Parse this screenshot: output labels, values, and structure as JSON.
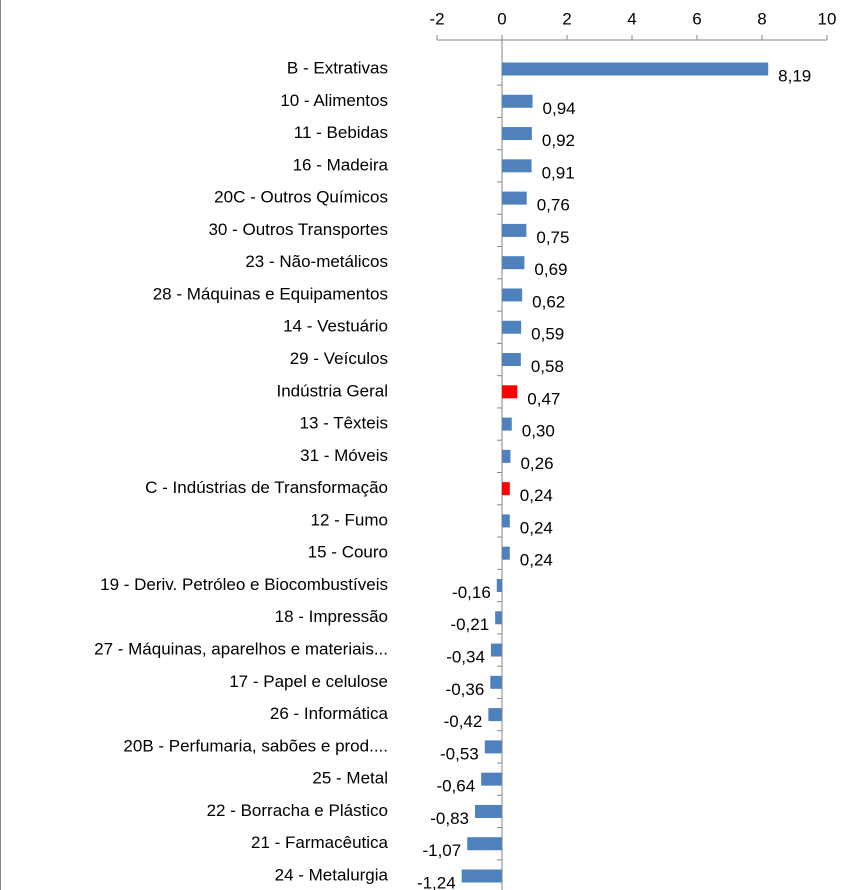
{
  "chart_data": {
    "type": "barh",
    "categories": [
      "B - Extrativas",
      "10 - Alimentos",
      "11 - Bebidas",
      "16 - Madeira",
      "20C - Outros Químicos",
      "30 - Outros Transportes",
      "23 - Não-metálicos",
      "28 - Máquinas e Equipamentos",
      "14 - Vestuário",
      "29 - Veículos",
      "Indústria Geral",
      "13 - Têxteis",
      "31 - Móveis",
      "C - Indústrias de Transformação",
      "12 - Fumo",
      "15 - Couro",
      "19 - Deriv. Petróleo e Biocombustíveis",
      "18 - Impressão",
      "27 - Máquinas, aparelhos e materiais...",
      "17 - Papel e celulose",
      "26 - Informática",
      "20B - Perfumaria, sabões e prod....",
      "25 - Metal",
      "22 - Borracha e Plástico",
      "21 - Farmacêutica",
      "24 - Metalurgia"
    ],
    "values": [
      8.19,
      0.94,
      0.92,
      0.91,
      0.76,
      0.75,
      0.69,
      0.62,
      0.59,
      0.58,
      0.47,
      0.3,
      0.26,
      0.24,
      0.24,
      0.24,
      -0.16,
      -0.21,
      -0.34,
      -0.36,
      -0.42,
      -0.53,
      -0.64,
      -0.83,
      -1.07,
      -1.24
    ],
    "value_labels": [
      "8,19",
      "0,94",
      "0,92",
      "0,91",
      "0,76",
      "0,75",
      "0,69",
      "0,62",
      "0,59",
      "0,58",
      "0,47",
      "0,30",
      "0,26",
      "0,24",
      "0,24",
      "0,24",
      "-0,16",
      "-0,21",
      "-0,34",
      "-0,36",
      "-0,42",
      "-0,53",
      "-0,64",
      "-0,83",
      "-1,07",
      "-1,24"
    ],
    "colors": [
      "#4f81bd",
      "#4f81bd",
      "#4f81bd",
      "#4f81bd",
      "#4f81bd",
      "#4f81bd",
      "#4f81bd",
      "#4f81bd",
      "#4f81bd",
      "#4f81bd",
      "#ff0000",
      "#4f81bd",
      "#4f81bd",
      "#ff0000",
      "#4f81bd",
      "#4f81bd",
      "#4f81bd",
      "#4f81bd",
      "#4f81bd",
      "#4f81bd",
      "#4f81bd",
      "#4f81bd",
      "#4f81bd",
      "#4f81bd",
      "#4f81bd",
      "#4f81bd"
    ],
    "xlim": [
      -2,
      10
    ],
    "xticks": [
      -2,
      0,
      2,
      4,
      6,
      8,
      10
    ]
  }
}
